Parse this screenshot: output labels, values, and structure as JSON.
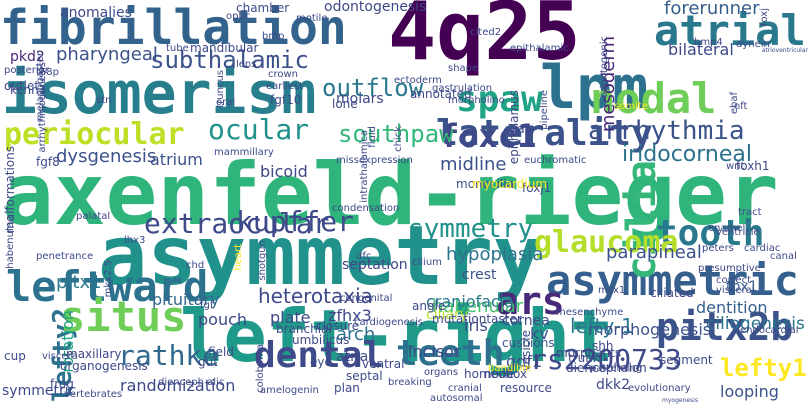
{
  "words": [
    {
      "text": "axenfeld-rieger",
      "color": "#2fb47c"
    },
    {
      "text": "asymmetry",
      "color": "#21918c"
    },
    {
      "text": "left-right",
      "color": "#1f9a8a"
    },
    {
      "text": "isomerism",
      "color": "#277f8e"
    },
    {
      "text": "4q25",
      "color": "#440154"
    },
    {
      "text": "fibrillation",
      "color": "#33638d"
    },
    {
      "text": "lpm",
      "color": "#2c728e"
    },
    {
      "text": "asymmetric",
      "color": "#355f8d"
    },
    {
      "text": "laterality",
      "color": "#3b528b"
    },
    {
      "text": "pitx2b",
      "color": "#3b528b"
    },
    {
      "text": "leftward",
      "color": "#2c728e"
    },
    {
      "text": "lefty2",
      "color": "#2c728e"
    },
    {
      "text": "nodal",
      "color": "#6ece58"
    },
    {
      "text": "atrial",
      "color": "#2a788e"
    },
    {
      "text": "cilia",
      "color": "#35b779"
    },
    {
      "text": "periocular",
      "color": "#bddf26"
    },
    {
      "text": "situs",
      "color": "#6ece58"
    },
    {
      "text": "dental",
      "color": "#3e4a89"
    },
    {
      "text": "teeth",
      "color": "#2c728e"
    },
    {
      "text": "spaw",
      "color": "#20a486"
    },
    {
      "text": "lefty1",
      "color": "#fde725"
    },
    {
      "text": "arrhythmia",
      "color": "#3b528b"
    },
    {
      "text": "tooth",
      "color": "#2a788e"
    },
    {
      "text": "foxc1",
      "color": "#3e4989"
    },
    {
      "text": "glaucoma",
      "color": "#b5de2b"
    },
    {
      "text": "symmetry",
      "color": "#21918c"
    },
    {
      "text": "extraocular",
      "color": "#3e4a89"
    },
    {
      "text": "kupffer",
      "color": "#3e4989"
    },
    {
      "text": "ars",
      "color": "#482878"
    },
    {
      "text": "ocular",
      "color": "#21918c"
    },
    {
      "text": "southpaw",
      "color": "#35b779"
    },
    {
      "text": "subthalamic",
      "color": "#3b528b"
    },
    {
      "text": "outflow",
      "color": "#2a788e"
    },
    {
      "text": "rathke",
      "color": "#31688e"
    },
    {
      "text": "rs2200733",
      "color": "#3e4989"
    },
    {
      "text": "iridocorneal",
      "color": "#2c728e"
    },
    {
      "text": "heterotaxia",
      "color": "#3e4989"
    },
    {
      "text": "pharyngeal",
      "color": "#3b528b"
    },
    {
      "text": "lefty-1",
      "color": "#2a788e"
    },
    {
      "text": "mesoderm",
      "color": "#482677"
    },
    {
      "text": "dysgenesis",
      "color": "#3b528b"
    },
    {
      "text": "forerunner",
      "color": "#355f8d"
    },
    {
      "text": "bilateral",
      "color": "#3e4989"
    },
    {
      "text": "midline",
      "color": "#3b528b"
    },
    {
      "text": "pitx1",
      "color": "#2a788e"
    },
    {
      "text": "atrium",
      "color": "#3b528b"
    },
    {
      "text": "rotation",
      "color": "#20a486"
    },
    {
      "text": "pouch",
      "color": "#3e4989"
    },
    {
      "text": "pituitary",
      "color": "#31688e"
    },
    {
      "text": "parapineal",
      "color": "#3b528b"
    },
    {
      "text": "ciliogenesis",
      "color": "#2c728e"
    },
    {
      "text": "habenular",
      "color": "#44bf70"
    },
    {
      "text": "iris",
      "color": "#3e4989"
    },
    {
      "text": "kv",
      "color": "#3b528b"
    },
    {
      "text": "hypoplasia",
      "color": "#2c728e"
    },
    {
      "text": "arch",
      "color": "#2c728e"
    },
    {
      "text": "plate",
      "color": "#3e4989"
    },
    {
      "text": "dentition",
      "color": "#355f8d"
    },
    {
      "text": "morphogenesis",
      "color": "#3b528b"
    },
    {
      "text": "looping",
      "color": "#3b528b"
    },
    {
      "text": "tbx1",
      "color": "#355f8d"
    },
    {
      "text": "zfhx3",
      "color": "#3e4989"
    },
    {
      "text": "craniofacial",
      "color": "#2a788e"
    },
    {
      "text": "crest",
      "color": "#3b528b"
    },
    {
      "text": "cornea",
      "color": "#3e4989"
    },
    {
      "text": "bicoid",
      "color": "#3e4989"
    },
    {
      "text": "gdf1",
      "color": "#3e4989"
    },
    {
      "text": "ciliary",
      "color": "#b5de2b"
    },
    {
      "text": "incisor",
      "color": "#3e4989"
    },
    {
      "text": "randomization",
      "color": "#3e4989"
    },
    {
      "text": "cushions",
      "color": "#3b528b"
    },
    {
      "text": "dkk2",
      "color": "#3e4989"
    },
    {
      "text": "atria",
      "color": "#3e4989"
    },
    {
      "text": "septation",
      "color": "#3e4989"
    },
    {
      "text": "symmetric",
      "color": "#3e4989"
    },
    {
      "text": "molars",
      "color": "#3e4989"
    },
    {
      "text": "odontogenesis",
      "color": "#3e4989"
    },
    {
      "text": "anomalies",
      "color": "#3e4989"
    },
    {
      "text": "chamber",
      "color": "#3e4989"
    },
    {
      "text": "mandibular",
      "color": "#3e4989"
    },
    {
      "text": "kcnn3",
      "color": "#3e4989"
    },
    {
      "text": "pkd2",
      "color": "#482878"
    },
    {
      "text": "fgf8",
      "color": "#3e4989"
    },
    {
      "text": "umbilicus",
      "color": "#3e4989"
    },
    {
      "text": "ventral",
      "color": "#3e4989"
    },
    {
      "text": "branchial",
      "color": "#3e4989"
    },
    {
      "text": "closure",
      "color": "#3e4989"
    },
    {
      "text": "angle",
      "color": "#3e4989"
    },
    {
      "text": "organogenesis",
      "color": "#3e4989"
    },
    {
      "text": "frog",
      "color": "#3e4989"
    },
    {
      "text": "maxillary",
      "color": "#3e4989"
    },
    {
      "text": "resource",
      "color": "#3e4989"
    },
    {
      "text": "homeobox",
      "color": "#3e4989"
    },
    {
      "text": "diencephalon",
      "color": "#3e4989"
    },
    {
      "text": "morphants",
      "color": "#3e4989"
    },
    {
      "text": "vesicle",
      "color": "#3e4989"
    },
    {
      "text": "mutationtaster",
      "color": "#3e4989"
    },
    {
      "text": "segment",
      "color": "#3e4989"
    },
    {
      "text": "ciliated",
      "color": "#3e4989"
    },
    {
      "text": "foxh1",
      "color": "#3e4989"
    },
    {
      "text": "foxj1",
      "color": "#3e4989"
    },
    {
      "text": "annotated",
      "color": "#3e4989"
    },
    {
      "text": "monocilia",
      "color": "#3e4989"
    },
    {
      "text": "epithalamus",
      "color": "#3e4989"
    },
    {
      "text": "myocardium",
      "color": "#fde725"
    },
    {
      "text": "outlet",
      "color": "#3e4989"
    },
    {
      "text": "malformations",
      "color": "#3e4989"
    },
    {
      "text": "gut",
      "color": "#3e4989"
    },
    {
      "text": "cup",
      "color": "#3e4989"
    },
    {
      "text": "eye",
      "color": "#3e4989"
    },
    {
      "text": "field",
      "color": "#3e4989"
    },
    {
      "text": "node",
      "color": "#3e4989"
    },
    {
      "text": "shh",
      "color": "#3e4989"
    },
    {
      "text": "trunk",
      "color": "#3e4989"
    },
    {
      "text": "septal",
      "color": "#3e4989"
    },
    {
      "text": "plan",
      "color": "#3e4989"
    },
    {
      "text": "jaw",
      "color": "#3e4989"
    },
    {
      "text": "lone",
      "color": "#3e4989"
    },
    {
      "text": "fgf10",
      "color": "#3e4989"
    },
    {
      "text": "stn",
      "color": "#3e4989"
    },
    {
      "text": "oral",
      "color": "#3e4989"
    },
    {
      "text": "lhx3",
      "color": "#3e4989"
    },
    {
      "text": "chd",
      "color": "#3e4989"
    },
    {
      "text": "fgf",
      "color": "#3e4989"
    },
    {
      "text": "palatal",
      "color": "#3e4989"
    },
    {
      "text": "viscera",
      "color": "#3e4989"
    },
    {
      "text": "posterior",
      "color": "#3e4989"
    },
    {
      "text": "tube",
      "color": "#3e4989"
    },
    {
      "text": "bmp",
      "color": "#3e4989"
    },
    {
      "text": "bmp4",
      "color": "#3e4989"
    },
    {
      "text": "optic",
      "color": "#3e4989"
    },
    {
      "text": "lens",
      "color": "#3e4989"
    },
    {
      "text": "crown",
      "color": "#3e4989"
    },
    {
      "text": "truncus",
      "color": "#3e4989"
    },
    {
      "text": "earliest",
      "color": "#3e4989"
    },
    {
      "text": "ectoderm",
      "color": "#3e4989"
    },
    {
      "text": "gastrulation",
      "color": "#3e4989"
    },
    {
      "text": "enamel",
      "color": "#3e4989"
    },
    {
      "text": "tract",
      "color": "#3e4989"
    },
    {
      "text": "visceral",
      "color": "#3e4989"
    },
    {
      "text": "correct",
      "color": "#3e4989"
    },
    {
      "text": "ventricle",
      "color": "#3e4989"
    },
    {
      "text": "dynein",
      "color": "#3e4989"
    },
    {
      "text": "odontogenic",
      "color": "#3e4989"
    },
    {
      "text": "pipeline",
      "color": "#3e4989"
    },
    {
      "text": "shape",
      "color": "#3e4989"
    },
    {
      "text": "motile",
      "color": "#3e4989"
    },
    {
      "text": "arrhythmogenesis",
      "color": "#3e4989"
    },
    {
      "text": "t68p",
      "color": "#3e4989"
    },
    {
      "text": "cited2",
      "color": "#3e4989"
    },
    {
      "text": "epithalamic",
      "color": "#3e4989"
    },
    {
      "text": "morpholino",
      "color": "#3e4989"
    },
    {
      "text": "somite",
      "color": "#fde725"
    },
    {
      "text": "oft",
      "color": "#3e4989"
    },
    {
      "text": "atrioventricular",
      "color": "#3e4989"
    },
    {
      "text": "peters",
      "color": "#3e4989"
    },
    {
      "text": "presumptive",
      "color": "#3e4989"
    },
    {
      "text": "cardiac",
      "color": "#3e4989"
    },
    {
      "text": "cilium",
      "color": "#3e4989"
    },
    {
      "text": "cranial",
      "color": "#3e4989"
    },
    {
      "text": "organs",
      "color": "#3e4989"
    },
    {
      "text": "breaking",
      "color": "#3e4989"
    },
    {
      "text": "congenital",
      "color": "#3e4989"
    },
    {
      "text": "coloboma",
      "color": "#3e4989"
    },
    {
      "text": "vertebrates",
      "color": "#3e4989"
    },
    {
      "text": "amelogenin",
      "color": "#3e4989"
    },
    {
      "text": "penetrance",
      "color": "#3e4989"
    },
    {
      "text": "dienceph alic",
      "color": "#3e4989"
    },
    {
      "text": "mkx2.5",
      "color": "#3e4989"
    },
    {
      "text": "msx1",
      "color": "#3e4989"
    },
    {
      "text": "cardiogenesis",
      "color": "#3e4989"
    },
    {
      "text": "autosomal",
      "color": "#3e4989"
    },
    {
      "text": "myogenesis",
      "color": "#3e4989"
    },
    {
      "text": "evolutionary",
      "color": "#3e4989"
    },
    {
      "text": "patterning",
      "color": "#3e4989"
    },
    {
      "text": "mesenchyme",
      "color": "#3e4989"
    },
    {
      "text": "endocardial",
      "color": "#3e4989"
    },
    {
      "text": "habenulae",
      "color": "#3e4989"
    },
    {
      "text": "mammillary",
      "color": "#3e4989"
    },
    {
      "text": "shotgun",
      "color": "#3e4989"
    },
    {
      "text": "heart",
      "color": "#fde725"
    },
    {
      "text": "intrathalamica",
      "color": "#3e4989"
    },
    {
      "text": "missexpression",
      "color": "#3e4989"
    },
    {
      "text": "euchromatic",
      "color": "#3e4989"
    },
    {
      "text": "ebaf",
      "color": "#3e4989"
    },
    {
      "text": "wnt",
      "color": "#3e4989"
    },
    {
      "text": "canal",
      "color": "#3e4989"
    },
    {
      "text": "fluid",
      "color": "#3e4989"
    },
    {
      "text": "chick",
      "color": "#3e4989"
    },
    {
      "text": "foxj",
      "color": "#3e4989"
    },
    {
      "text": "melanogaster",
      "color": "#3e4989"
    },
    {
      "text": "dfc",
      "color": "#3e4989"
    },
    {
      "text": "bandible",
      "color": "#fde725"
    },
    {
      "text": "condensation",
      "color": "#3e4989"
    }
  ]
}
